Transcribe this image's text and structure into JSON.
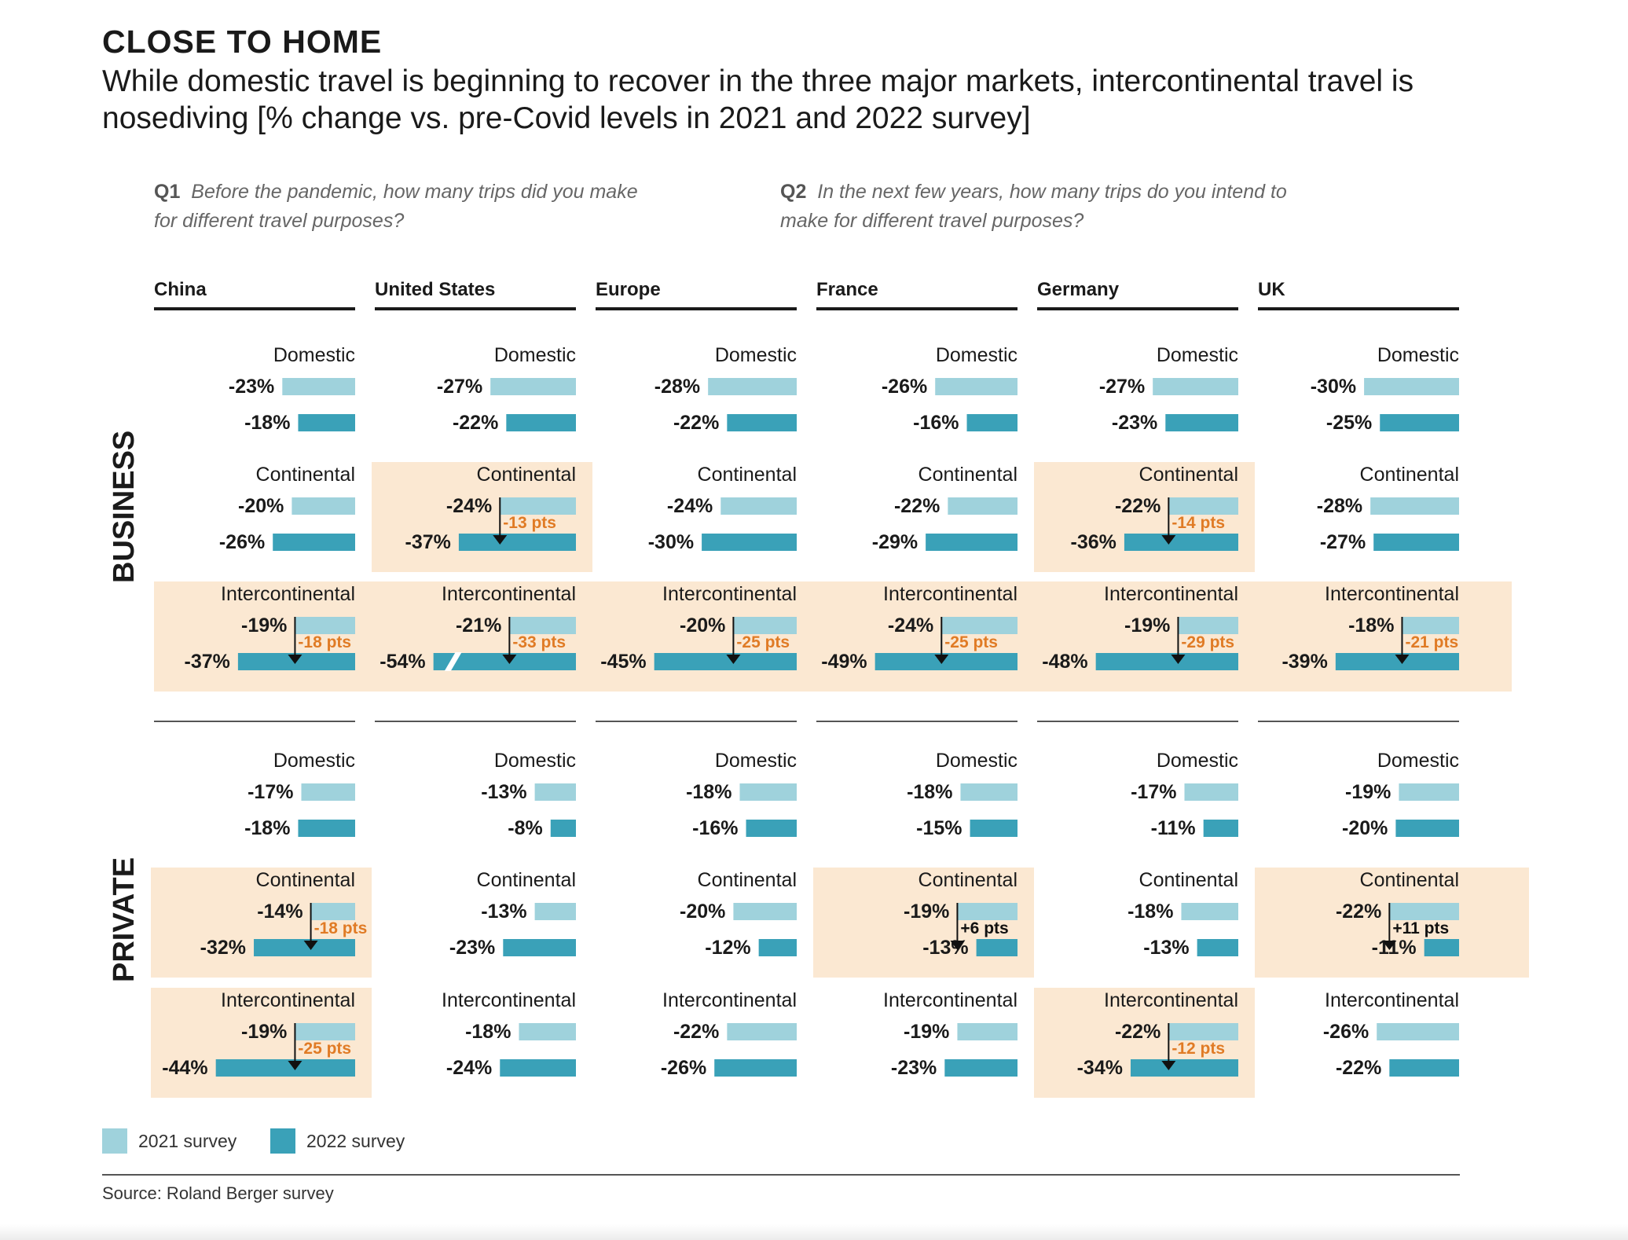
{
  "title": "CLOSE TO HOME",
  "subtitle": "While domestic travel is beginning to recover in the three major markets, intercontinental travel is nosediving [% change vs. pre-Covid levels in 2021 and 2022 survey]",
  "q1": {
    "label": "Q1",
    "text": "Before the pandemic, how many trips did you make for different travel purposes?"
  },
  "q2": {
    "label": "Q2",
    "text": "In the next few years, how many trips do you intend to make for different travel purposes?"
  },
  "legend": {
    "s2021": "2021 survey",
    "s2022": "2022 survey"
  },
  "source": "Source: Roland Berger survey",
  "colors": {
    "survey_2021": "#9fd2dc",
    "survey_2022": "#3aa1b8",
    "highlight": "#fbe8d2",
    "change_negative": "#e07b25",
    "text": "#1a1a1a"
  },
  "chart_data": {
    "type": "bar",
    "orientation": "horizontal",
    "unit": "%",
    "countries": [
      "China",
      "United States",
      "Europe",
      "France",
      "Germany",
      "UK"
    ],
    "segments": [
      "BUSINESS",
      "PRIVATE"
    ],
    "categories": [
      "Domestic",
      "Continental",
      "Intercontinental"
    ],
    "series": [
      {
        "name": "2021 survey"
      },
      {
        "name": "2022 survey"
      }
    ],
    "values": {
      "BUSINESS": {
        "Domestic": {
          "2021": [
            -23,
            -27,
            -28,
            -26,
            -27,
            -30
          ],
          "2022": [
            -18,
            -22,
            -22,
            -16,
            -23,
            -25
          ]
        },
        "Continental": {
          "2021": [
            -20,
            -24,
            -24,
            -22,
            -22,
            -28
          ],
          "2022": [
            -26,
            -37,
            -30,
            -29,
            -36,
            -27
          ]
        },
        "Intercontinental": {
          "2021": [
            -19,
            -21,
            -20,
            -24,
            -19,
            -18
          ],
          "2022": [
            -37,
            -54,
            -45,
            -49,
            -48,
            -39
          ]
        }
      },
      "PRIVATE": {
        "Domestic": {
          "2021": [
            -17,
            -13,
            -18,
            -18,
            -17,
            -19
          ],
          "2022": [
            -18,
            -8,
            -16,
            -15,
            -11,
            -20
          ]
        },
        "Continental": {
          "2021": [
            -14,
            -13,
            -20,
            -19,
            -18,
            -22
          ],
          "2022": [
            -32,
            -23,
            -12,
            -13,
            -13,
            -11
          ]
        },
        "Intercontinental": {
          "2021": [
            -19,
            -18,
            -22,
            -19,
            -22,
            -26
          ],
          "2022": [
            -44,
            -24,
            -26,
            -23,
            -34,
            -22
          ]
        }
      }
    },
    "annotations": [
      {
        "segment": "BUSINESS",
        "category": "Continental",
        "country": "United States",
        "text": "-13 pts"
      },
      {
        "segment": "BUSINESS",
        "category": "Continental",
        "country": "Germany",
        "text": "-14 pts"
      },
      {
        "segment": "BUSINESS",
        "category": "Intercontinental",
        "country": "China",
        "text": "-18 pts"
      },
      {
        "segment": "BUSINESS",
        "category": "Intercontinental",
        "country": "United States",
        "text": "-33 pts"
      },
      {
        "segment": "BUSINESS",
        "category": "Intercontinental",
        "country": "Europe",
        "text": "-25 pts"
      },
      {
        "segment": "BUSINESS",
        "category": "Intercontinental",
        "country": "France",
        "text": "-25 pts"
      },
      {
        "segment": "BUSINESS",
        "category": "Intercontinental",
        "country": "Germany",
        "text": "-29 pts"
      },
      {
        "segment": "BUSINESS",
        "category": "Intercontinental",
        "country": "UK",
        "text": "-21 pts"
      },
      {
        "segment": "PRIVATE",
        "category": "Continental",
        "country": "China",
        "text": "-18 pts"
      },
      {
        "segment": "PRIVATE",
        "category": "Continental",
        "country": "France",
        "text": "+6 pts"
      },
      {
        "segment": "PRIVATE",
        "category": "Continental",
        "country": "UK",
        "text": "+11 pts"
      },
      {
        "segment": "PRIVATE",
        "category": "Intercontinental",
        "country": "China",
        "text": "-25 pts"
      },
      {
        "segment": "PRIVATE",
        "category": "Intercontinental",
        "country": "Germany",
        "text": "-12 pts"
      }
    ],
    "broken_bars": [
      {
        "segment": "BUSINESS",
        "category": "Intercontinental",
        "country": "United States",
        "series": "2022 survey"
      }
    ]
  }
}
